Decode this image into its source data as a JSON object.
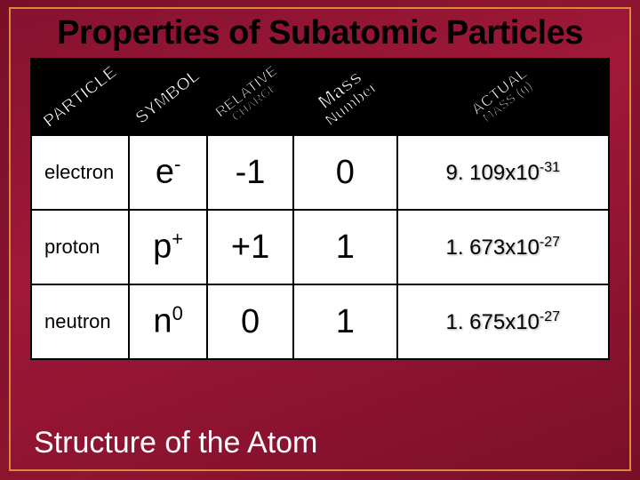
{
  "title": "Properties of Subatomic Particles",
  "footer": "Structure of the Atom",
  "headers": {
    "h1": "PARTICLE",
    "h2": "SYMBOL",
    "h3a": "RELATIVE",
    "h3b": "CHARGE",
    "h4a": "Mass",
    "h4b": "Number",
    "h5a": "ACTUAL",
    "h5b": "MASS (g)"
  },
  "rows": [
    {
      "particle": "electron",
      "symbol_base": "e",
      "symbol_sup": "-",
      "charge": "-1",
      "massnum": "0",
      "mass_coef": "9. 109x10",
      "mass_exp": "-31"
    },
    {
      "particle": "proton",
      "symbol_base": "p",
      "symbol_sup": "+",
      "charge": "+1",
      "massnum": "1",
      "mass_coef": "1. 673x10",
      "mass_exp": "-27"
    },
    {
      "particle": "neutron",
      "symbol_base": "n",
      "symbol_sup": "0",
      "charge": "0",
      "massnum": "1",
      "mass_coef": "1. 675x10",
      "mass_exp": "-27"
    }
  ],
  "style": {
    "header_font_sizes": [
      20,
      20,
      17,
      22,
      18
    ],
    "background_gradient": [
      "#861231",
      "#a01838",
      "#7d0f2b"
    ],
    "border_color": "#d88a3a"
  }
}
